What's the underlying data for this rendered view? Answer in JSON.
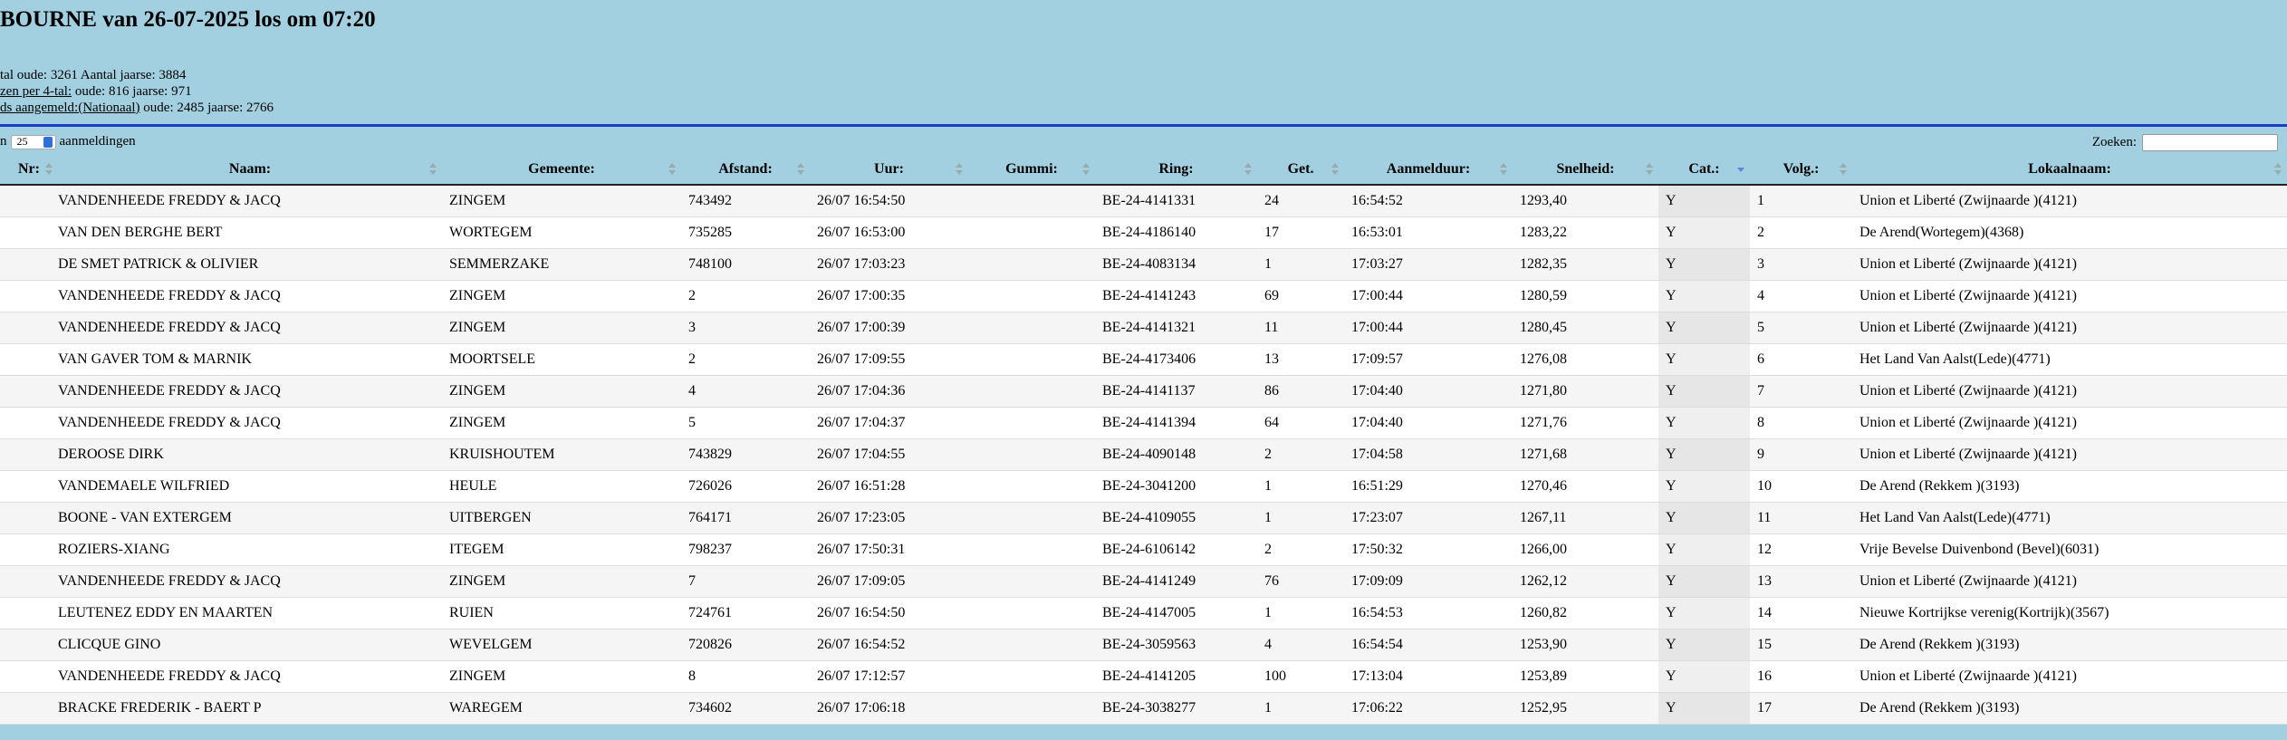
{
  "header": {
    "title": "BOURNE van 26-07-2025 los om 07:20",
    "info": [
      {
        "text": "tal oude: 3261 Aantal jaarse: 3884"
      },
      {
        "link": "zen per 4-tal:",
        "text": " oude: 816 jaarse: 971"
      },
      {
        "link": "ds aangemeld:(Nationaal)",
        "text": " oude: 2485 jaarse: 2766"
      }
    ]
  },
  "controls": {
    "length_prefix": "n",
    "length_value": "25",
    "length_suffix": "aanmeldingen",
    "search_label": "Zoeken:"
  },
  "table": {
    "columns": [
      "Nr:",
      "Naam:",
      "Gemeente:",
      "Afstand:",
      "Uur:",
      "Gummi:",
      "Ring:",
      "Get.",
      "Aanmelduur:",
      "Snelheid:",
      "Cat.:",
      "Volg.:",
      "Lokaalnaam:"
    ],
    "rows": [
      {
        "naam": "VANDENHEEDE FREDDY & JACQ",
        "gemeente": "ZINGEM",
        "afstand": "743492",
        "uur": "26/07 16:54:50",
        "ring": "BE-24-4141331",
        "get": "24",
        "aanmelduur": "16:54:52",
        "snelheid": "1293,40",
        "cat": "Y",
        "volg": "1",
        "lokaal": "Union et Liberté (Zwijnaarde )(4121)"
      },
      {
        "naam": "VAN DEN BERGHE BERT",
        "gemeente": "WORTEGEM",
        "afstand": "735285",
        "uur": "26/07 16:53:00",
        "ring": "BE-24-4186140",
        "get": "17",
        "aanmelduur": "16:53:01",
        "snelheid": "1283,22",
        "cat": "Y",
        "volg": "2",
        "lokaal": "De Arend(Wortegem)(4368)"
      },
      {
        "naam": "DE SMET PATRICK & OLIVIER",
        "gemeente": "SEMMERZAKE",
        "afstand": "748100",
        "uur": "26/07 17:03:23",
        "ring": "BE-24-4083134",
        "get": "1",
        "aanmelduur": "17:03:27",
        "snelheid": "1282,35",
        "cat": "Y",
        "volg": "3",
        "lokaal": "Union et Liberté (Zwijnaarde )(4121)"
      },
      {
        "naam": "VANDENHEEDE FREDDY & JACQ",
        "gemeente": "ZINGEM",
        "afstand": "2",
        "uur": "26/07 17:00:35",
        "ring": "BE-24-4141243",
        "get": "69",
        "aanmelduur": "17:00:44",
        "snelheid": "1280,59",
        "cat": "Y",
        "volg": "4",
        "lokaal": "Union et Liberté (Zwijnaarde )(4121)"
      },
      {
        "naam": "VANDENHEEDE FREDDY & JACQ",
        "gemeente": "ZINGEM",
        "afstand": "3",
        "uur": "26/07 17:00:39",
        "ring": "BE-24-4141321",
        "get": "11",
        "aanmelduur": "17:00:44",
        "snelheid": "1280,45",
        "cat": "Y",
        "volg": "5",
        "lokaal": "Union et Liberté (Zwijnaarde )(4121)"
      },
      {
        "naam": "VAN GAVER TOM & MARNIK",
        "gemeente": "MOORTSELE",
        "afstand": "2",
        "uur": "26/07 17:09:55",
        "ring": "BE-24-4173406",
        "get": "13",
        "aanmelduur": "17:09:57",
        "snelheid": "1276,08",
        "cat": "Y",
        "volg": "6",
        "lokaal": "Het Land Van Aalst(Lede)(4771)"
      },
      {
        "naam": "VANDENHEEDE FREDDY & JACQ",
        "gemeente": "ZINGEM",
        "afstand": "4",
        "uur": "26/07 17:04:36",
        "ring": "BE-24-4141137",
        "get": "86",
        "aanmelduur": "17:04:40",
        "snelheid": "1271,80",
        "cat": "Y",
        "volg": "7",
        "lokaal": "Union et Liberté (Zwijnaarde )(4121)"
      },
      {
        "naam": "VANDENHEEDE FREDDY & JACQ",
        "gemeente": "ZINGEM",
        "afstand": "5",
        "uur": "26/07 17:04:37",
        "ring": "BE-24-4141394",
        "get": "64",
        "aanmelduur": "17:04:40",
        "snelheid": "1271,76",
        "cat": "Y",
        "volg": "8",
        "lokaal": "Union et Liberté (Zwijnaarde )(4121)"
      },
      {
        "naam": "DEROOSE DIRK",
        "gemeente": "KRUISHOUTEM",
        "afstand": "743829",
        "uur": "26/07 17:04:55",
        "ring": "BE-24-4090148",
        "get": "2",
        "aanmelduur": "17:04:58",
        "snelheid": "1271,68",
        "cat": "Y",
        "volg": "9",
        "lokaal": "Union et Liberté (Zwijnaarde )(4121)"
      },
      {
        "naam": "VANDEMAELE WILFRIED",
        "gemeente": "HEULE",
        "afstand": "726026",
        "uur": "26/07 16:51:28",
        "ring": "BE-24-3041200",
        "get": "1",
        "aanmelduur": "16:51:29",
        "snelheid": "1270,46",
        "cat": "Y",
        "volg": "10",
        "lokaal": "De Arend (Rekkem )(3193)"
      },
      {
        "naam": "BOONE - VAN EXTERGEM",
        "gemeente": "UITBERGEN",
        "afstand": "764171",
        "uur": "26/07 17:23:05",
        "ring": "BE-24-4109055",
        "get": "1",
        "aanmelduur": "17:23:07",
        "snelheid": "1267,11",
        "cat": "Y",
        "volg": "11",
        "lokaal": "Het Land Van Aalst(Lede)(4771)"
      },
      {
        "naam": "ROZIERS-XIANG",
        "gemeente": "ITEGEM",
        "afstand": "798237",
        "uur": "26/07 17:50:31",
        "ring": "BE-24-6106142",
        "get": "2",
        "aanmelduur": "17:50:32",
        "snelheid": "1266,00",
        "cat": "Y",
        "volg": "12",
        "lokaal": "Vrije Bevelse Duivenbond (Bevel)(6031)"
      },
      {
        "naam": "VANDENHEEDE FREDDY & JACQ",
        "gemeente": "ZINGEM",
        "afstand": "7",
        "uur": "26/07 17:09:05",
        "ring": "BE-24-4141249",
        "get": "76",
        "aanmelduur": "17:09:09",
        "snelheid": "1262,12",
        "cat": "Y",
        "volg": "13",
        "lokaal": "Union et Liberté (Zwijnaarde )(4121)"
      },
      {
        "naam": "LEUTENEZ EDDY EN MAARTEN",
        "gemeente": "RUIEN",
        "afstand": "724761",
        "uur": "26/07 16:54:50",
        "ring": "BE-24-4147005",
        "get": "1",
        "aanmelduur": "16:54:53",
        "snelheid": "1260,82",
        "cat": "Y",
        "volg": "14",
        "lokaal": "Nieuwe Kortrijkse verenig(Kortrijk)(3567)"
      },
      {
        "naam": "CLICQUE GINO",
        "gemeente": "WEVELGEM",
        "afstand": "720826",
        "uur": "26/07 16:54:52",
        "ring": "BE-24-3059563",
        "get": "4",
        "aanmelduur": "16:54:54",
        "snelheid": "1253,90",
        "cat": "Y",
        "volg": "15",
        "lokaal": "De Arend (Rekkem )(3193)"
      },
      {
        "naam": "VANDENHEEDE FREDDY & JACQ",
        "gemeente": "ZINGEM",
        "afstand": "8",
        "uur": "26/07 17:12:57",
        "ring": "BE-24-4141205",
        "get": "100",
        "aanmelduur": "17:13:04",
        "snelheid": "1253,89",
        "cat": "Y",
        "volg": "16",
        "lokaal": "Union et Liberté (Zwijnaarde )(4121)"
      },
      {
        "naam": "BRACKE FREDERIK - BAERT P",
        "gemeente": "WAREGEM",
        "afstand": "734602",
        "uur": "26/07 17:06:18",
        "ring": "BE-24-3038277",
        "get": "1",
        "aanmelduur": "17:06:22",
        "snelheid": "1252,95",
        "cat": "Y",
        "volg": "17",
        "lokaal": "De Arend (Rekkem )(3193)"
      }
    ]
  }
}
